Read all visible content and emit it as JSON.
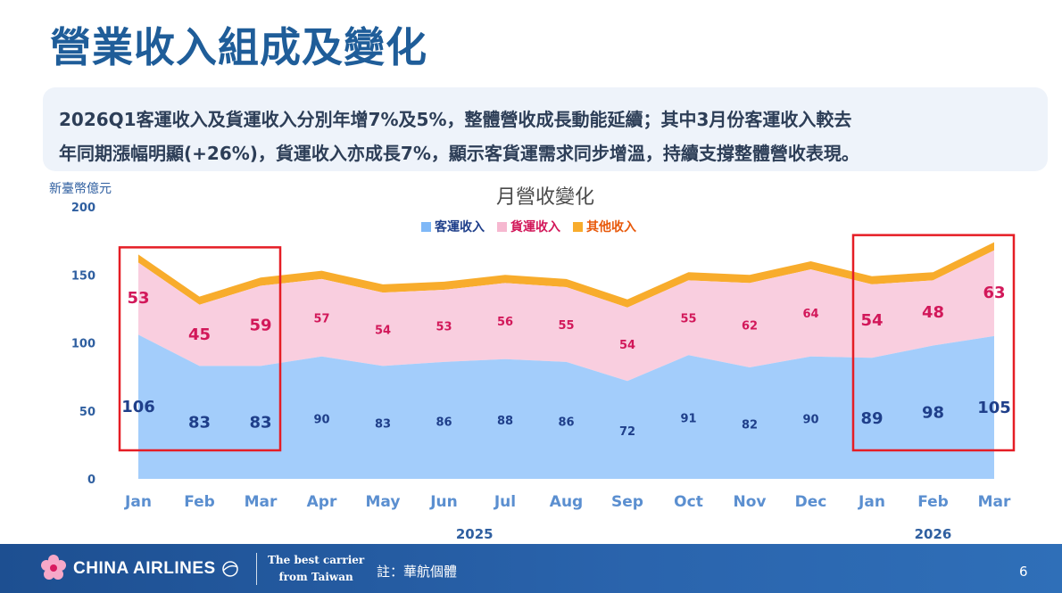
{
  "title": "營業收入組成及變化",
  "summary": {
    "line1": "2026Q1客運收入及貨運收入分別年增7%及5%，整體營收成長動能延續；其中3月份客運收入較去",
    "line2": "年同期漲幅明顯(+26%)，貨運收入亦成長7%，顯示客貨運需求同步增溫，持續支撐整體營收表現。"
  },
  "chart_data": {
    "type": "area",
    "stacked": true,
    "title": "月營收變化",
    "ylabel": "新臺幣億元",
    "ylim": [
      0,
      200
    ],
    "yticks": [
      0,
      50,
      100,
      150,
      200
    ],
    "x": [
      "Jan",
      "Feb",
      "Mar",
      "Apr",
      "May",
      "Jun",
      "Jul",
      "Aug",
      "Sep",
      "Oct",
      "Nov",
      "Dec",
      "Jan",
      "Feb",
      "Mar"
    ],
    "year_groups": [
      {
        "label": "2025",
        "start": 0,
        "end": 11
      },
      {
        "label": "2026",
        "start": 12,
        "end": 14
      }
    ],
    "legend_position": "top-center",
    "series": [
      {
        "name": "客運收入",
        "color": "#a3cdfb",
        "label_color": "#1f3f8a",
        "values": [
          106,
          83,
          83,
          90,
          83,
          86,
          88,
          86,
          72,
          91,
          82,
          90,
          89,
          98,
          105
        ]
      },
      {
        "name": "貨運收入",
        "color": "#f9cedf",
        "label_color": "#d2185a",
        "values": [
          53,
          45,
          59,
          57,
          54,
          53,
          56,
          55,
          54,
          55,
          62,
          64,
          54,
          48,
          63
        ]
      },
      {
        "name": "其他收入",
        "color": "#f8ac2c",
        "values": [
          6,
          6,
          6,
          6,
          6,
          6,
          6,
          6,
          6,
          6,
          6,
          6,
          6,
          6,
          6
        ]
      }
    ],
    "highlight_groups": [
      [
        0,
        2
      ],
      [
        12,
        14
      ]
    ],
    "highlight_color": "#e51d25",
    "emphasized_points": [
      0,
      1,
      2,
      12,
      13,
      14
    ]
  },
  "footer": {
    "brand": "CHINA AIRLINES",
    "slogan_line1": "The best carrier",
    "slogan_line2": "from Taiwan",
    "note": "註：華航個體",
    "page": "6"
  }
}
